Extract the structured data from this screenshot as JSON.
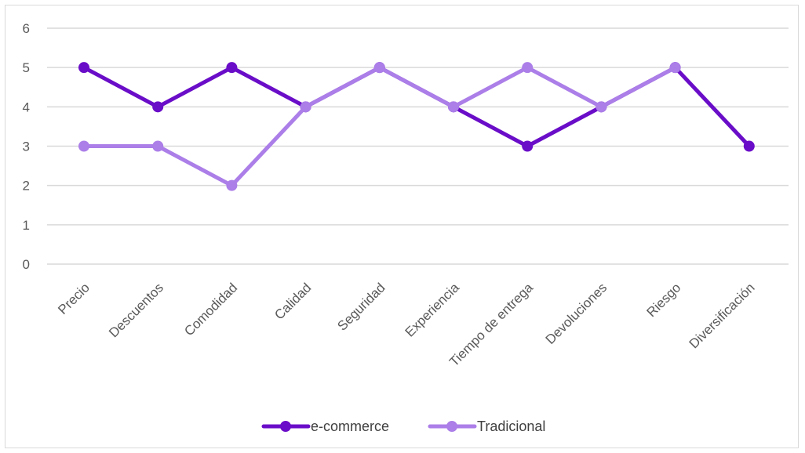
{
  "colors": {
    "ecommerce": "#6a0dc8",
    "tradicional": "#ab7ee8",
    "gridline": "#d9d9d9",
    "text": "#595959",
    "border": "#d9d9d9"
  },
  "chart_data": {
    "type": "line",
    "title": "",
    "xlabel": "",
    "ylabel": "",
    "ylim": [
      0,
      6
    ],
    "y_ticks": [
      0,
      1,
      2,
      3,
      4,
      5,
      6
    ],
    "grid": true,
    "legend_position": "bottom",
    "markers": true,
    "categories": [
      "Precio",
      "Descuentos",
      "Comodidad",
      "Calidad",
      "Seguridad",
      "Experiencia",
      "Tiempo de entrega",
      "Devoluciones",
      "Riesgo",
      "Diversificación"
    ],
    "series": [
      {
        "name": "e-commerce",
        "color": "#6a0dc8",
        "values": [
          5,
          4,
          5,
          4,
          5,
          4,
          3,
          4,
          5,
          3
        ]
      },
      {
        "name": "Tradicional",
        "color": "#ab7ee8",
        "values": [
          3,
          3,
          2,
          4,
          5,
          4,
          5,
          4,
          5,
          null
        ]
      }
    ]
  }
}
